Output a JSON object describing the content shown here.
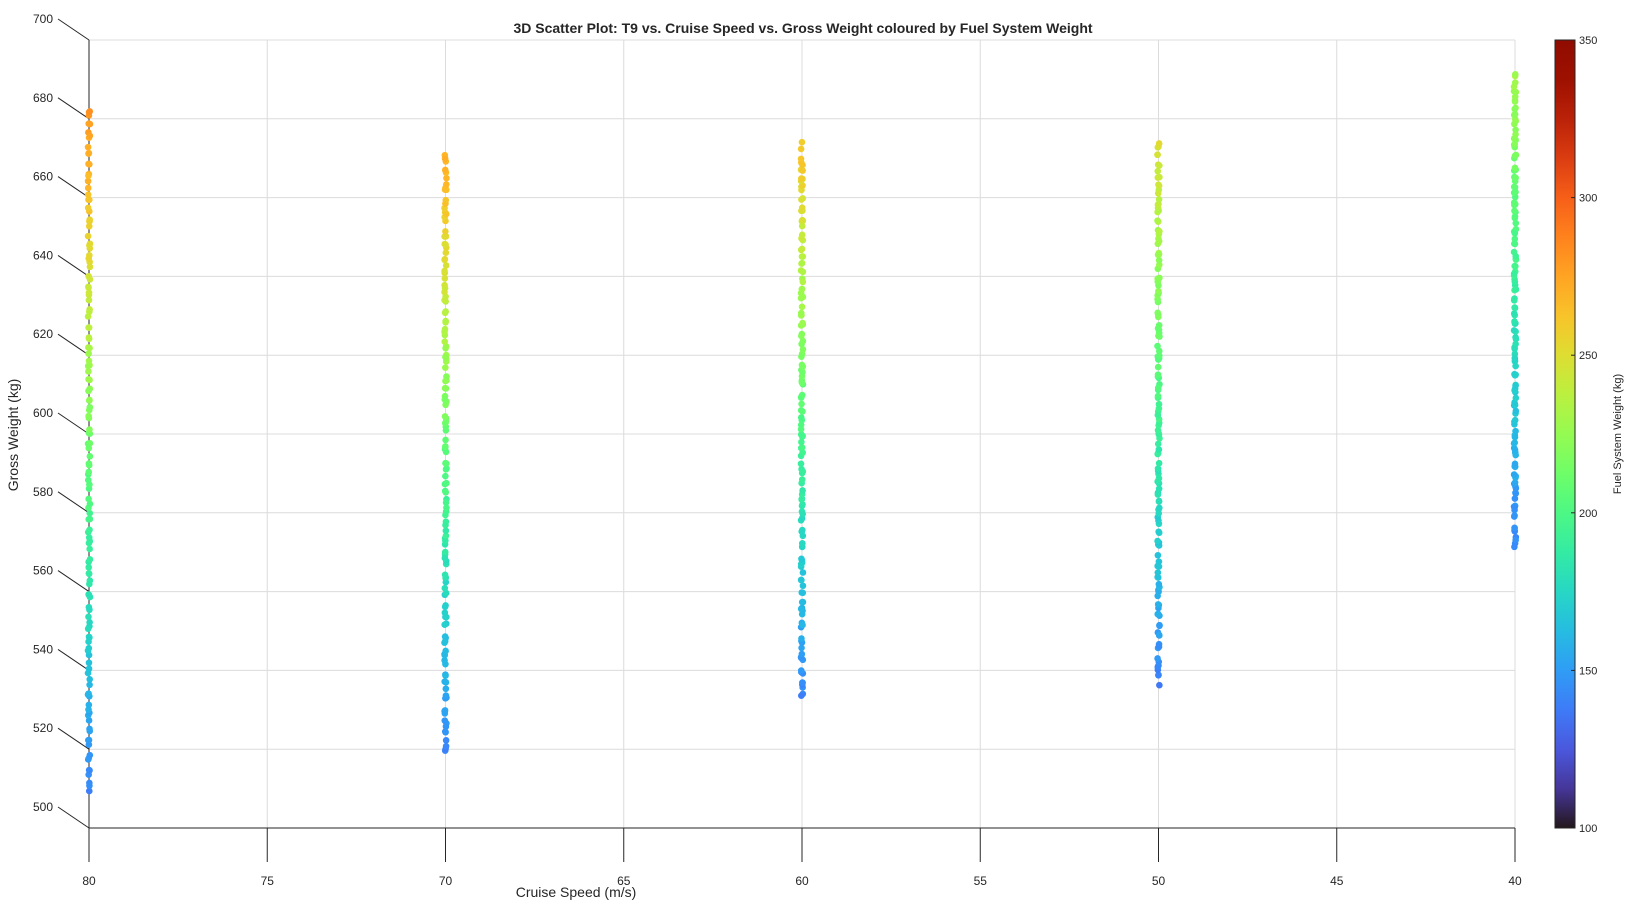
{
  "chart_data": {
    "type": "scatter",
    "title": "3D Scatter Plot: T9 vs. Cruise Speed vs. Gross Weight coloured by Fuel System Weight",
    "xlabel": "Cruise Speed (m/s)",
    "ylabel": "Gross Weight (kg)",
    "colorbar_label": "Fuel System Weight (kg)",
    "xlim": [
      80,
      40
    ],
    "x_reversed": true,
    "ylim": [
      500,
      700
    ],
    "clim": [
      100,
      350
    ],
    "x_ticks": [
      "80",
      "75",
      "70",
      "65",
      "60",
      "55",
      "50",
      "45",
      "40"
    ],
    "y_ticks": [
      "500",
      "520",
      "540",
      "560",
      "580",
      "600",
      "620",
      "640",
      "660",
      "680",
      "700"
    ],
    "colorbar_ticks": [
      "100",
      "150",
      "200",
      "250",
      "300",
      "350"
    ],
    "colormap": "turbo",
    "grid": true,
    "series": [
      {
        "x": 80,
        "gross_weight_range": [
          509,
          683
        ],
        "fuel_system_weight_range": [
          140,
          282
        ]
      },
      {
        "x": 70,
        "gross_weight_range": [
          519,
          671
        ],
        "fuel_system_weight_range": [
          140,
          272
        ]
      },
      {
        "x": 60,
        "gross_weight_range": [
          533,
          673
        ],
        "fuel_system_weight_range": [
          140,
          262
        ]
      },
      {
        "x": 50,
        "gross_weight_range": [
          537,
          674
        ],
        "fuel_system_weight_range": [
          140,
          250
        ]
      },
      {
        "x": 40,
        "gross_weight_range": [
          571,
          691
        ],
        "fuel_system_weight_range": [
          140,
          230
        ]
      }
    ]
  }
}
